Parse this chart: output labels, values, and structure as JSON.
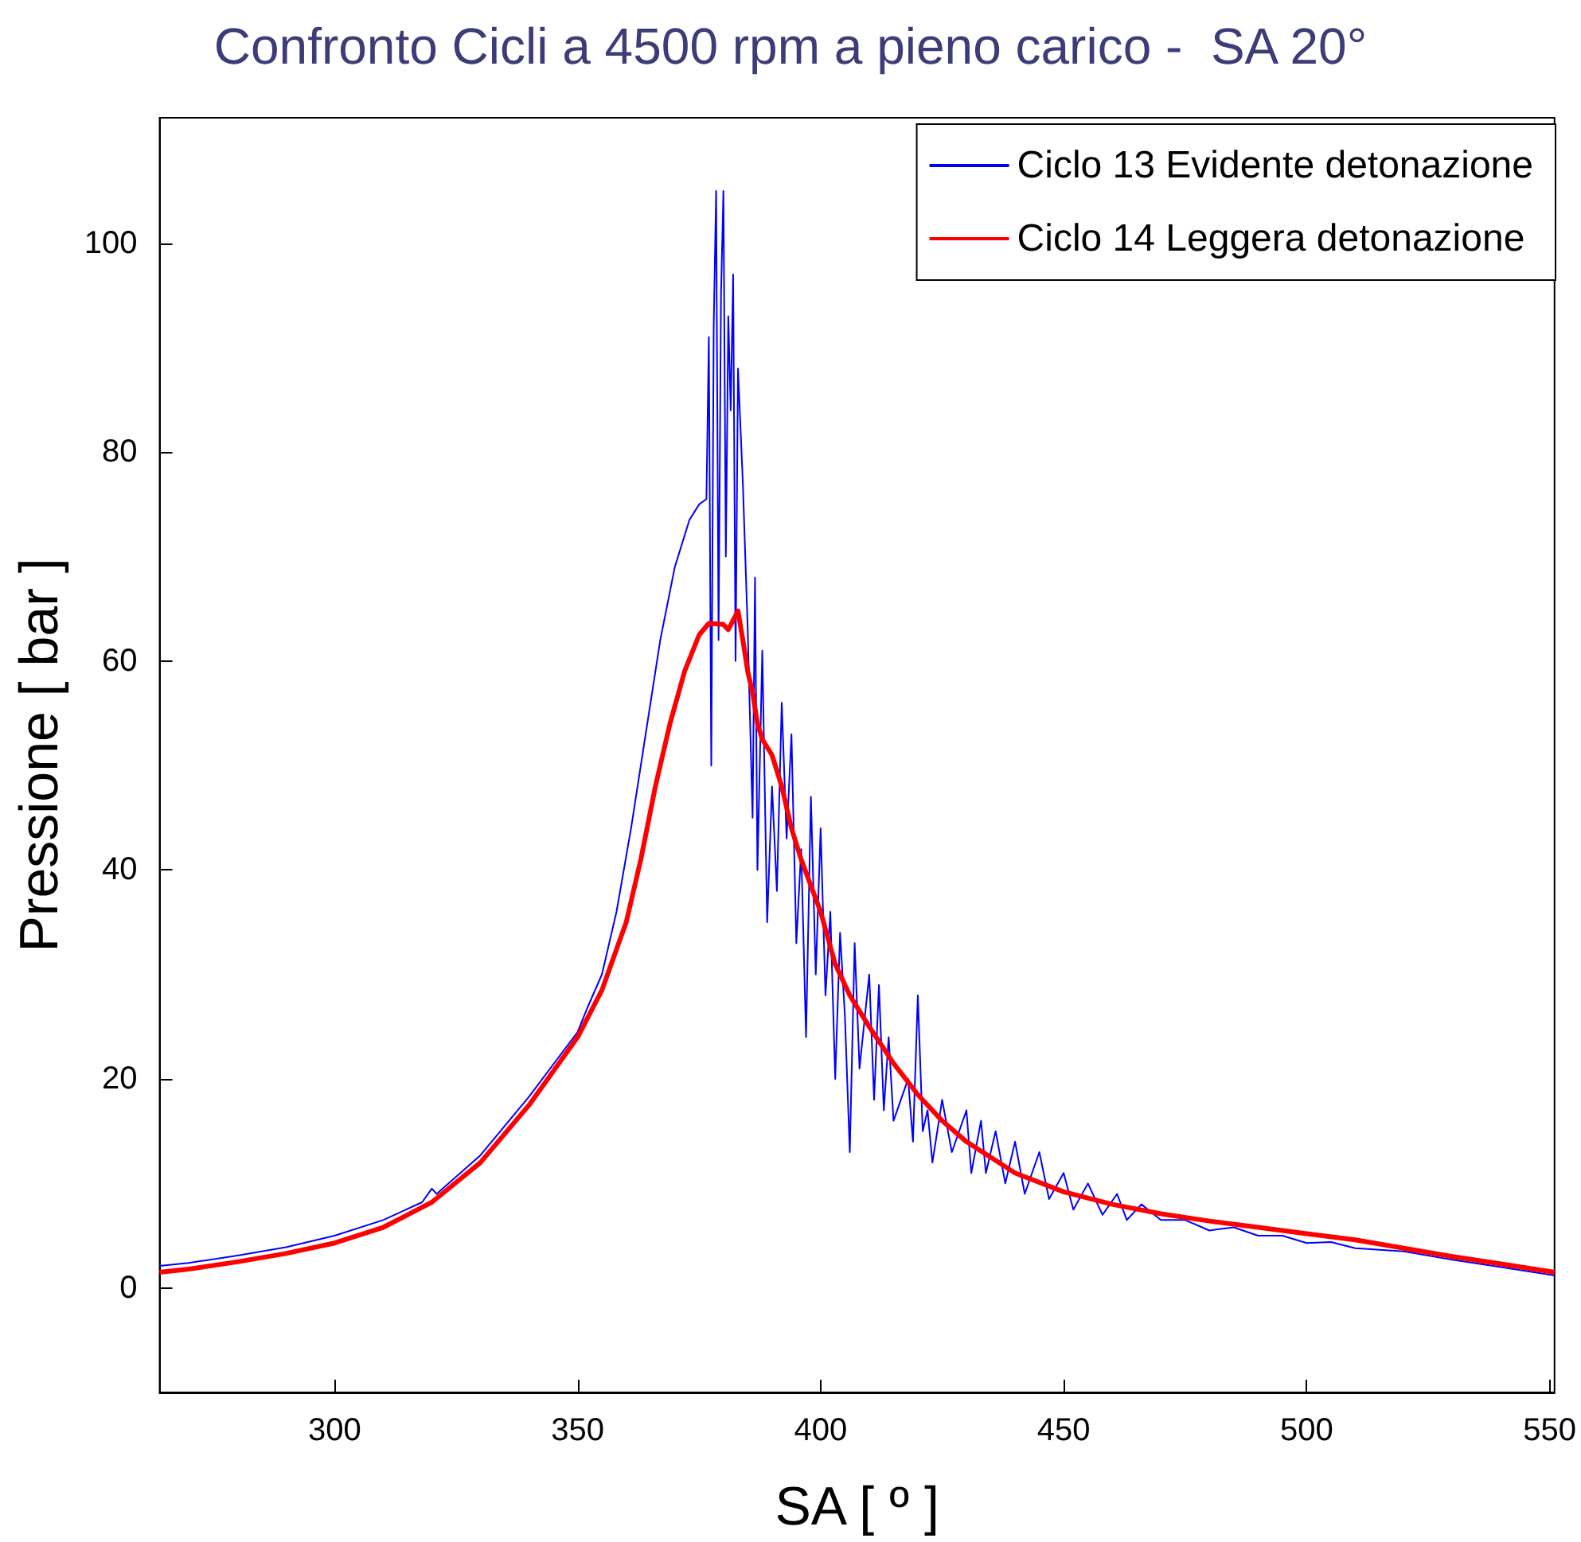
{
  "chart_data": {
    "type": "line",
    "title": "Confronto Cicli a 4500 rpm a pieno carico -  SA 20°",
    "xlabel": "SA [ º ]",
    "ylabel": "Pressione [ bar ]",
    "xlim": [
      264,
      551
    ],
    "xticks": [
      300,
      350,
      400,
      450,
      500,
      550
    ],
    "ylim": [
      -10,
      112
    ],
    "yticks": [
      0,
      20,
      40,
      60,
      80,
      100
    ],
    "grid": false,
    "legend": "top right",
    "marker": "none",
    "line_style": "solid",
    "series": [
      {
        "name": "Ciclo 13 Evidente detonazione",
        "color": "#0000ff",
        "x": [
          264,
          270,
          280,
          290,
          300,
          310,
          318,
          320,
          321,
          330,
          340,
          350,
          352,
          355,
          358,
          361,
          364,
          367,
          370,
          373,
          375,
          376.5,
          377,
          377.5,
          378,
          378.5,
          379,
          379.5,
          380,
          380.5,
          381,
          381.5,
          382,
          382.5,
          383,
          384,
          385,
          386,
          386.5,
          387,
          388,
          389,
          390,
          391,
          392,
          393,
          394,
          395,
          396,
          397,
          398,
          399,
          400,
          401,
          402,
          403,
          404,
          405,
          406,
          407,
          408,
          410,
          411,
          412,
          413,
          414,
          415,
          418,
          419,
          420,
          421,
          422,
          423,
          425,
          427,
          430,
          431,
          433,
          434,
          436,
          438,
          440,
          442,
          445,
          447,
          450,
          452,
          455,
          458,
          461,
          463,
          466,
          470,
          475,
          480,
          485,
          490,
          495,
          500,
          505,
          510,
          520,
          530,
          540,
          551
        ],
        "values": [
          2.1,
          2.4,
          3.1,
          3.9,
          5,
          6.5,
          8.2,
          9.5,
          9,
          12.7,
          18.3,
          24.5,
          26.8,
          30,
          36,
          44,
          53,
          62,
          69,
          73.5,
          75,
          75.5,
          91,
          50,
          92,
          105,
          62,
          95,
          105,
          70,
          93,
          84,
          97,
          60,
          88,
          77,
          63,
          45,
          68,
          40,
          61,
          35,
          48,
          38,
          56,
          43,
          53,
          33,
          42,
          24,
          47,
          30,
          44,
          28,
          36,
          20,
          34,
          26,
          13,
          33,
          21,
          30,
          18,
          29,
          17,
          24,
          16,
          20,
          14,
          28,
          15,
          17,
          12,
          18,
          13,
          17,
          11,
          16,
          11,
          15,
          10,
          14,
          9,
          13,
          8.5,
          11,
          7.5,
          10,
          7,
          9,
          6.5,
          8,
          6.5,
          6.5,
          5.5,
          5.8,
          5,
          5,
          4.3,
          4.4,
          3.8,
          3.5,
          2.7,
          2,
          1.2
        ]
      },
      {
        "name": "Ciclo 14 Leggera detonazione",
        "color": "#ff0000",
        "x": [
          264,
          270,
          280,
          290,
          300,
          310,
          320,
          330,
          340,
          350,
          355,
          360,
          363,
          366,
          369,
          372,
          375,
          377,
          380,
          381,
          383,
          384,
          385,
          386,
          387,
          388,
          390,
          392,
          394,
          396,
          398,
          400,
          403,
          406,
          410,
          415,
          420,
          425,
          430,
          435,
          440,
          450,
          460,
          470,
          480,
          490,
          500,
          510,
          520,
          530,
          540,
          551
        ],
        "values": [
          1.5,
          1.8,
          2.5,
          3.3,
          4.3,
          5.8,
          8.2,
          12,
          17.5,
          24,
          28.5,
          35,
          41,
          48,
          54,
          59,
          62.5,
          63.6,
          63.5,
          63,
          64.8,
          62,
          59,
          57,
          54,
          52.5,
          51,
          48,
          44,
          41,
          38.5,
          36,
          31,
          28,
          25,
          21.5,
          18.5,
          16,
          14,
          12.5,
          11,
          9.2,
          8,
          7.1,
          6.4,
          5.8,
          5.2,
          4.6,
          3.8,
          3,
          2.3,
          1.5
        ]
      }
    ]
  }
}
